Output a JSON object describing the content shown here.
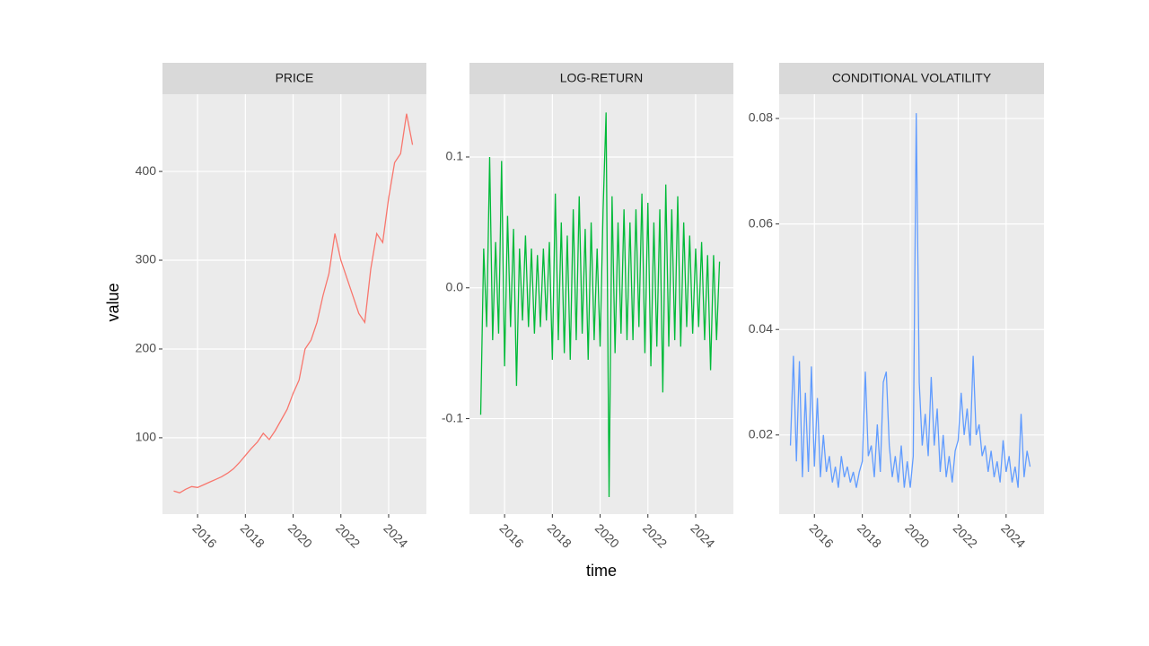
{
  "chart_data": [
    {
      "type": "line",
      "title": "PRICE",
      "ylabel": "value",
      "x": [
        2015,
        2015.25,
        2015.5,
        2015.75,
        2016,
        2016.25,
        2016.5,
        2016.75,
        2017,
        2017.25,
        2017.5,
        2017.75,
        2018,
        2018.25,
        2018.5,
        2018.75,
        2019,
        2019.25,
        2019.5,
        2019.75,
        2020,
        2020.25,
        2020.5,
        2020.75,
        2021,
        2021.25,
        2021.5,
        2021.75,
        2022,
        2022.25,
        2022.5,
        2022.75,
        2023,
        2023.25,
        2023.5,
        2023.75,
        2024,
        2024.25,
        2024.5,
        2024.75,
        2025
      ],
      "series": [
        {
          "color": "#F8766D",
          "values": [
            40,
            38,
            42,
            45,
            44,
            47,
            50,
            53,
            56,
            60,
            65,
            72,
            80,
            88,
            95,
            105,
            98,
            108,
            120,
            132,
            150,
            165,
            200,
            210,
            230,
            260,
            285,
            330,
            300,
            280,
            260,
            240,
            230,
            290,
            330,
            320,
            370,
            410,
            420,
            465,
            430
          ]
        }
      ],
      "xlim": [
        2014.53,
        2025.58
      ],
      "xticks": [
        2016,
        2018,
        2020,
        2022,
        2024
      ],
      "ylim": [
        14,
        487
      ],
      "yticks": [
        100,
        200,
        300,
        400
      ],
      "grid": true
    },
    {
      "type": "line",
      "title": "LOG-RETURN",
      "xlabel": "time",
      "x": [
        2015,
        2015.125,
        2015.25,
        2015.375,
        2015.5,
        2015.625,
        2015.75,
        2015.875,
        2016,
        2016.125,
        2016.25,
        2016.375,
        2016.5,
        2016.625,
        2016.75,
        2016.875,
        2017,
        2017.125,
        2017.25,
        2017.375,
        2017.5,
        2017.625,
        2017.75,
        2017.875,
        2018,
        2018.125,
        2018.25,
        2018.375,
        2018.5,
        2018.625,
        2018.75,
        2018.875,
        2019,
        2019.125,
        2019.25,
        2019.375,
        2019.5,
        2019.625,
        2019.75,
        2019.875,
        2020,
        2020.125,
        2020.25,
        2020.375,
        2020.5,
        2020.625,
        2020.75,
        2020.875,
        2021,
        2021.125,
        2021.25,
        2021.375,
        2021.5,
        2021.625,
        2021.75,
        2021.875,
        2022,
        2022.125,
        2022.25,
        2022.375,
        2022.5,
        2022.625,
        2022.75,
        2022.875,
        2023,
        2023.125,
        2023.25,
        2023.375,
        2023.5,
        2023.625,
        2023.75,
        2023.875,
        2024,
        2024.125,
        2024.25,
        2024.375,
        2024.5,
        2024.625,
        2024.75,
        2024.875,
        2025
      ],
      "series": [
        {
          "color": "#00BA38",
          "values": [
            -0.097,
            0.03,
            -0.03,
            0.1,
            -0.04,
            0.035,
            -0.035,
            0.097,
            -0.06,
            0.055,
            -0.03,
            0.045,
            -0.075,
            0.03,
            -0.025,
            0.04,
            -0.03,
            0.03,
            -0.035,
            0.025,
            -0.03,
            0.03,
            -0.025,
            0.035,
            -0.055,
            0.072,
            -0.04,
            0.05,
            -0.05,
            0.04,
            -0.055,
            0.06,
            -0.04,
            0.07,
            -0.035,
            0.045,
            -0.055,
            0.05,
            -0.04,
            0.03,
            -0.045,
            0.06,
            0.134,
            -0.16,
            0.07,
            -0.05,
            0.05,
            -0.035,
            0.06,
            -0.04,
            0.05,
            -0.04,
            0.06,
            -0.03,
            0.072,
            -0.05,
            0.065,
            -0.06,
            0.05,
            -0.045,
            0.06,
            -0.08,
            0.079,
            -0.045,
            0.06,
            -0.04,
            0.07,
            -0.045,
            0.05,
            -0.03,
            0.04,
            -0.035,
            0.03,
            -0.03,
            0.035,
            -0.04,
            0.025,
            -0.063,
            0.025,
            -0.04,
            0.02
          ]
        }
      ],
      "xlim": [
        2014.53,
        2025.58
      ],
      "xticks": [
        2016,
        2018,
        2020,
        2022,
        2024
      ],
      "ylim": [
        -0.173,
        0.148
      ],
      "yticks": [
        -0.1,
        {
          "value": 0,
          "label": "0.0"
        },
        0.1
      ],
      "grid": true
    },
    {
      "type": "line",
      "title": "CONDITIONAL VOLATILITY",
      "x": [
        2015,
        2015.125,
        2015.25,
        2015.375,
        2015.5,
        2015.625,
        2015.75,
        2015.875,
        2016,
        2016.125,
        2016.25,
        2016.375,
        2016.5,
        2016.625,
        2016.75,
        2016.875,
        2017,
        2017.125,
        2017.25,
        2017.375,
        2017.5,
        2017.625,
        2017.75,
        2017.875,
        2018,
        2018.125,
        2018.25,
        2018.375,
        2018.5,
        2018.625,
        2018.75,
        2018.875,
        2019,
        2019.125,
        2019.25,
        2019.375,
        2019.5,
        2019.625,
        2019.75,
        2019.875,
        2020,
        2020.125,
        2020.25,
        2020.375,
        2020.5,
        2020.625,
        2020.75,
        2020.875,
        2021,
        2021.125,
        2021.25,
        2021.375,
        2021.5,
        2021.625,
        2021.75,
        2021.875,
        2022,
        2022.125,
        2022.25,
        2022.375,
        2022.5,
        2022.625,
        2022.75,
        2022.875,
        2023,
        2023.125,
        2023.25,
        2023.375,
        2023.5,
        2023.625,
        2023.75,
        2023.875,
        2024,
        2024.125,
        2024.25,
        2024.375,
        2024.5,
        2024.625,
        2024.75,
        2024.875,
        2025
      ],
      "series": [
        {
          "color": "#619CFF",
          "values": [
            0.018,
            0.035,
            0.015,
            0.034,
            0.012,
            0.028,
            0.013,
            0.033,
            0.014,
            0.027,
            0.012,
            0.02,
            0.013,
            0.016,
            0.011,
            0.014,
            0.01,
            0.016,
            0.012,
            0.014,
            0.011,
            0.013,
            0.01,
            0.013,
            0.015,
            0.032,
            0.016,
            0.018,
            0.012,
            0.022,
            0.013,
            0.03,
            0.032,
            0.018,
            0.012,
            0.016,
            0.011,
            0.018,
            0.01,
            0.015,
            0.01,
            0.016,
            0.081,
            0.03,
            0.018,
            0.024,
            0.016,
            0.031,
            0.018,
            0.025,
            0.013,
            0.02,
            0.012,
            0.016,
            0.011,
            0.017,
            0.019,
            0.028,
            0.02,
            0.025,
            0.018,
            0.035,
            0.02,
            0.022,
            0.016,
            0.018,
            0.013,
            0.017,
            0.012,
            0.015,
            0.011,
            0.019,
            0.013,
            0.016,
            0.011,
            0.014,
            0.01,
            0.024,
            0.012,
            0.017,
            0.014
          ]
        }
      ],
      "xlim": [
        2014.53,
        2025.58
      ],
      "xticks": [
        2016,
        2018,
        2020,
        2022,
        2024
      ],
      "ylim": [
        0.005,
        0.0846
      ],
      "yticks": [
        0.02,
        0.04,
        0.06,
        0.08
      ],
      "grid": true
    }
  ]
}
